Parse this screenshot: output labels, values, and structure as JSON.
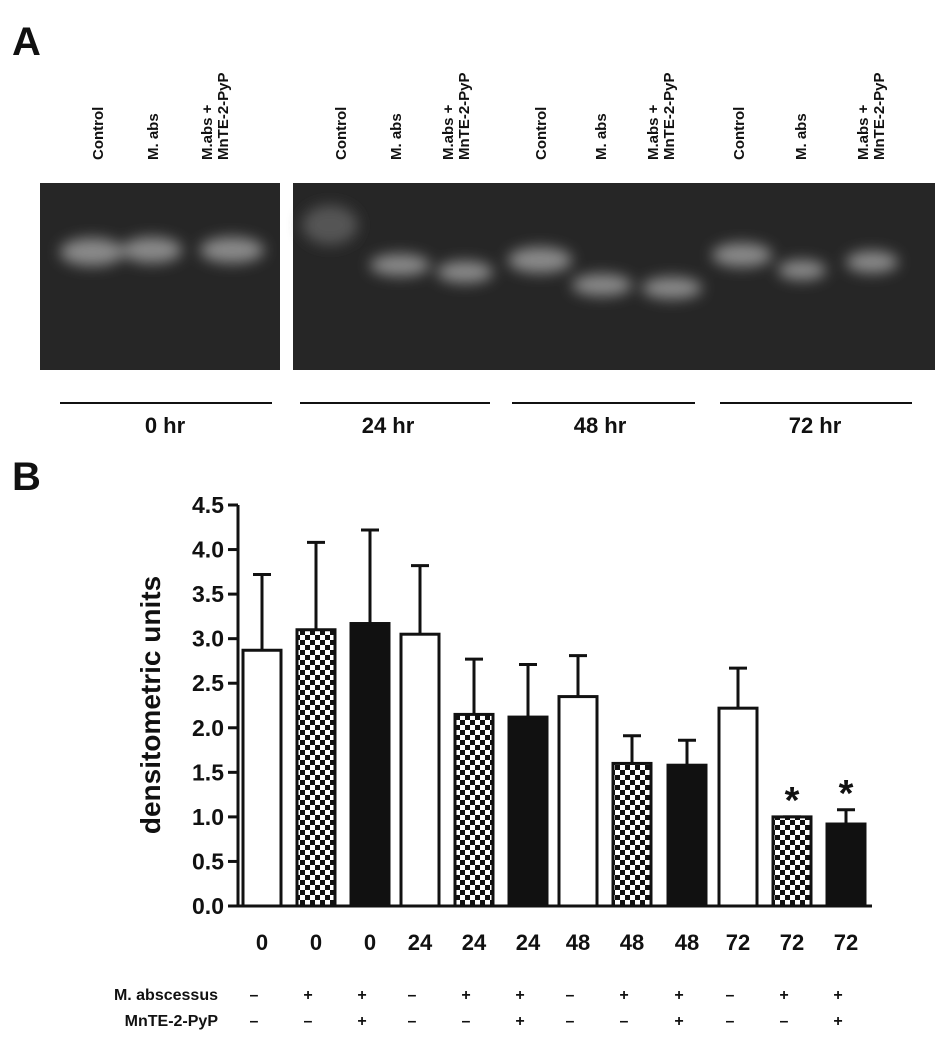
{
  "panel_a": {
    "label": "A",
    "lanes": [
      [
        "Control"
      ],
      [
        "M. abs"
      ],
      [
        "M.abs +",
        "MnTE-2-PyP"
      ],
      [
        "Control"
      ],
      [
        "M. abs"
      ],
      [
        "M.abs +",
        "MnTE-2-PyP"
      ],
      [
        "Control"
      ],
      [
        "M. abs"
      ],
      [
        "M.abs +",
        "MnTE-2-PyP"
      ],
      [
        "Control"
      ],
      [
        "M. abs"
      ],
      [
        "M.abs +",
        "MnTE-2-PyP"
      ]
    ],
    "times": [
      "0 hr",
      "24 hr",
      "48 hr",
      "72 hr"
    ]
  },
  "chart_data": {
    "type": "bar",
    "panel_label": "B",
    "ylabel": "densitometric units",
    "categories": [
      "0",
      "0",
      "0",
      "24",
      "24",
      "24",
      "48",
      "48",
      "48",
      "72",
      "72",
      "72"
    ],
    "values": [
      2.87,
      3.1,
      3.17,
      3.05,
      2.15,
      2.12,
      2.35,
      1.6,
      1.58,
      2.22,
      1.0,
      0.92
    ],
    "errors": [
      0.85,
      0.98,
      1.05,
      0.77,
      0.62,
      0.59,
      0.46,
      0.31,
      0.28,
      0.45,
      0,
      0.16
    ],
    "fills": [
      "white",
      "checker",
      "black",
      "white",
      "checker",
      "black",
      "white",
      "checker",
      "black",
      "white",
      "checker",
      "black"
    ],
    "annotations": [
      {
        "text": "*",
        "index": 10
      },
      {
        "text": "*",
        "index": 11
      }
    ],
    "ylim": [
      0,
      4.5
    ],
    "yticks": [
      {
        "value": 0,
        "label": "0.0"
      },
      {
        "value": 0.5,
        "label": "0.5"
      },
      {
        "value": 1,
        "label": "1.0"
      },
      {
        "value": 1.5,
        "label": "1.5"
      },
      {
        "value": 2,
        "label": "2.0"
      },
      {
        "value": 2.5,
        "label": "2.5"
      },
      {
        "value": 3,
        "label": "3.0"
      },
      {
        "value": 3.5,
        "label": "3.5"
      },
      {
        "value": 4,
        "label": "4.0"
      },
      {
        "value": 4.5,
        "label": "4.5"
      }
    ],
    "conditions": [
      {
        "label": "M. abscessus",
        "signs": [
          "–",
          "+",
          "+",
          "–",
          "+",
          "+",
          "–",
          "+",
          "+",
          "–",
          "+",
          "+"
        ]
      },
      {
        "label": "MnTE-2-PyP",
        "signs": [
          "–",
          "–",
          "+",
          "–",
          "–",
          "+",
          "–",
          "–",
          "+",
          "–",
          "–",
          "+"
        ]
      }
    ]
  }
}
